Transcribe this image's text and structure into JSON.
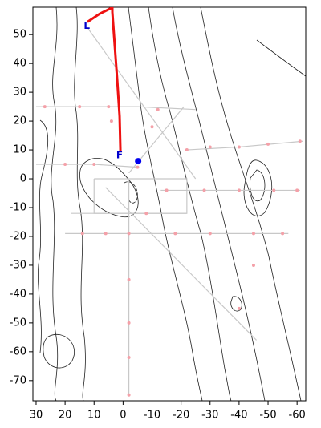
{
  "chart_data": {
    "type": "map",
    "xlim": [
      31.1,
      -63
    ],
    "ylim": [
      -77,
      59.5
    ],
    "xticks": [
      30,
      20,
      10,
      0,
      -10,
      -20,
      -30,
      -40,
      -50,
      -60
    ],
    "yticks": [
      50,
      40,
      30,
      20,
      10,
      0,
      -10,
      -20,
      -30,
      -40,
      -50,
      -60,
      -70
    ],
    "tracks": {
      "color": "#c8c8c8",
      "lines": [
        {
          "x": [
            30,
            -5,
            -25
          ],
          "y": [
            25,
            25,
            24
          ]
        },
        {
          "x": [
            -22,
            -40,
            -62
          ],
          "y": [
            10,
            11,
            13
          ]
        },
        {
          "x": [
            30,
            10,
            -5
          ],
          "y": [
            5,
            5,
            4
          ]
        },
        {
          "x": [
            -13,
            -61
          ],
          "y": [
            -4,
            -4
          ]
        },
        {
          "x": [
            12,
            -25
          ],
          "y": [
            52,
            0
          ]
        },
        {
          "x": [
            -21,
            -2
          ],
          "y": [
            25,
            2
          ]
        },
        {
          "x": [
            6,
            -46
          ],
          "y": [
            -3,
            -56
          ]
        },
        {
          "x": [
            -2,
            -2
          ],
          "y": [
            0,
            -75
          ]
        },
        {
          "x": [
            20,
            -57
          ],
          "y": [
            -19,
            -19
          ]
        },
        {
          "x": [
            18,
            -22
          ],
          "y": [
            -12,
            -12
          ]
        },
        {
          "x": [
            10,
            -22,
            -22,
            10,
            10
          ],
          "y": [
            0,
            0,
            -12,
            -12,
            0
          ]
        }
      ]
    },
    "samples": {
      "color": "#f4a0a8",
      "x": [
        27,
        15,
        5,
        -12,
        -22,
        -30,
        -40,
        -50,
        -61,
        20,
        10,
        -5,
        -15,
        -28,
        -40,
        -52,
        -60,
        14,
        6,
        -2,
        -8,
        -18,
        -30,
        -45,
        -55,
        -2,
        -2,
        -2,
        -2,
        -40,
        -45,
        4,
        -10
      ],
      "y": [
        25,
        25,
        25,
        24,
        10,
        11,
        11,
        12,
        13,
        5,
        5,
        4,
        -4,
        -4,
        -4,
        -4,
        -4,
        -19,
        -19,
        -19,
        -12,
        -19,
        -19,
        -19,
        -19,
        -35,
        -50,
        -62,
        -75,
        -45,
        -30,
        20,
        18
      ]
    },
    "route": {
      "color": "#ee1111",
      "x": [
        12.3,
        8.1,
        3.7,
        3.7,
        2,
        1.2,
        0.9
      ],
      "y": [
        54.4,
        57.2,
        59.4,
        57.8,
        34,
        21.7,
        9.2
      ]
    },
    "markers": [
      {
        "label": "L",
        "x": 12.5,
        "y": 53
      },
      {
        "label": "F",
        "x": 1.2,
        "y": 8
      }
    ],
    "station": {
      "x": -5.2,
      "y": 6.1,
      "color": "#0000ee"
    }
  }
}
